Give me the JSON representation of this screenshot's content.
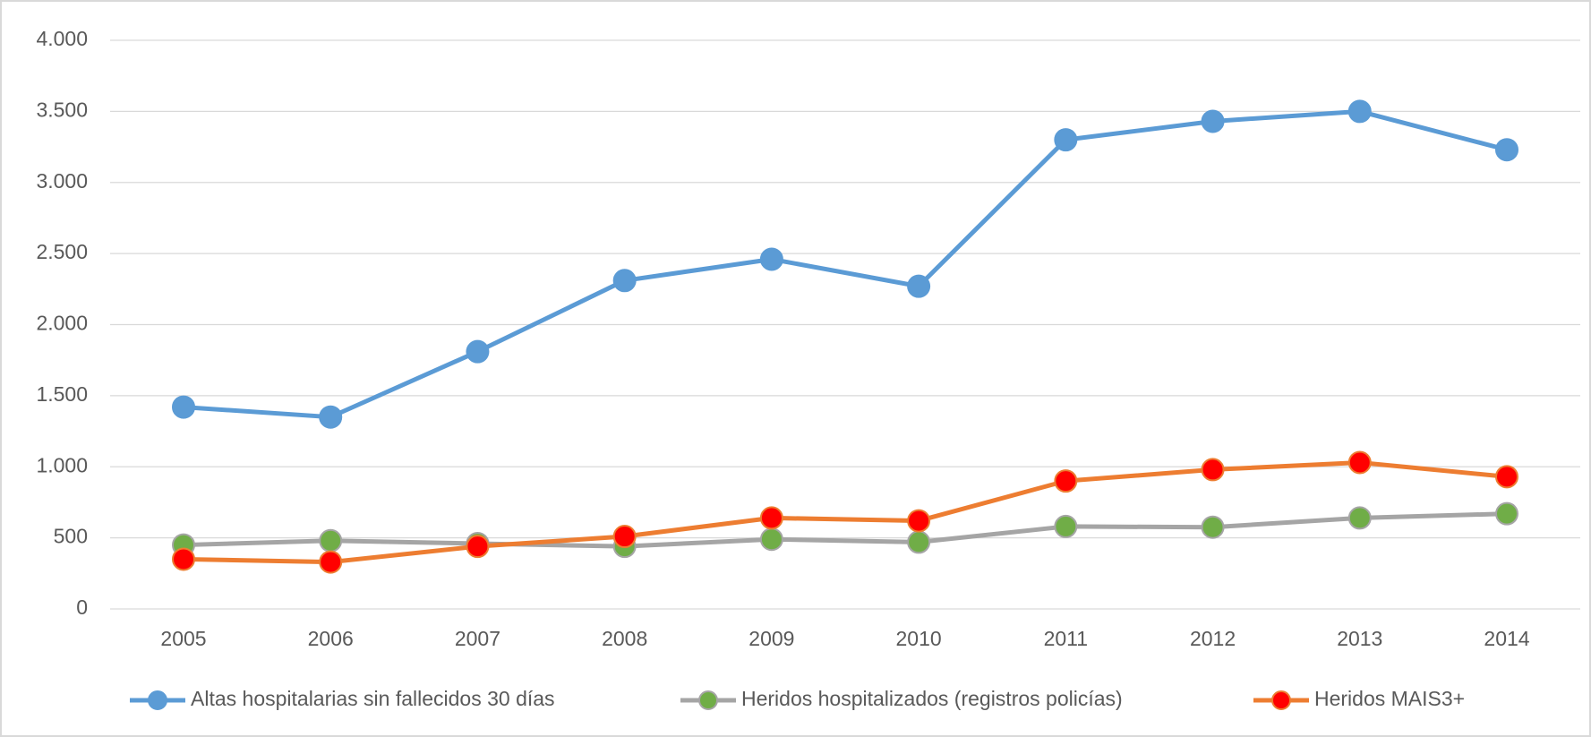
{
  "chart_data": {
    "type": "line",
    "categories": [
      "2005",
      "2006",
      "2007",
      "2008",
      "2009",
      "2010",
      "2011",
      "2012",
      "2013",
      "2014"
    ],
    "series": [
      {
        "name": "Altas hospitalarias sin fallecidos 30 días",
        "color": "#5b9bd5",
        "marker_color": "#5b9bd5",
        "values": [
          1420,
          1350,
          1810,
          2310,
          2460,
          2270,
          3300,
          3430,
          3500,
          3230
        ]
      },
      {
        "name": "Heridos hospitalizados (registros policías)",
        "color": "#a5a5a5",
        "marker_color": "#70ad47",
        "values": [
          450,
          480,
          460,
          440,
          490,
          470,
          580,
          575,
          640,
          670
        ]
      },
      {
        "name": "Heridos MAIS3+",
        "color": "#ed7d31",
        "marker_color": "#ff0000",
        "values": [
          350,
          330,
          440,
          510,
          640,
          620,
          900,
          980,
          1030,
          930
        ]
      }
    ],
    "ylim": [
      0,
      4000
    ],
    "yticks": [
      0,
      500,
      {
        "value": 1000,
        "label": "1.000"
      },
      {
        "value": 1500,
        "label": "1.500"
      },
      {
        "value": 2000,
        "label": "2.000"
      },
      {
        "value": 2500,
        "label": "2.500"
      },
      {
        "value": 3000,
        "label": "3.000"
      },
      {
        "value": 3500,
        "label": "3.500"
      },
      {
        "value": 4000,
        "label": "4.000"
      }
    ],
    "grid": true,
    "legend": "bottom"
  }
}
